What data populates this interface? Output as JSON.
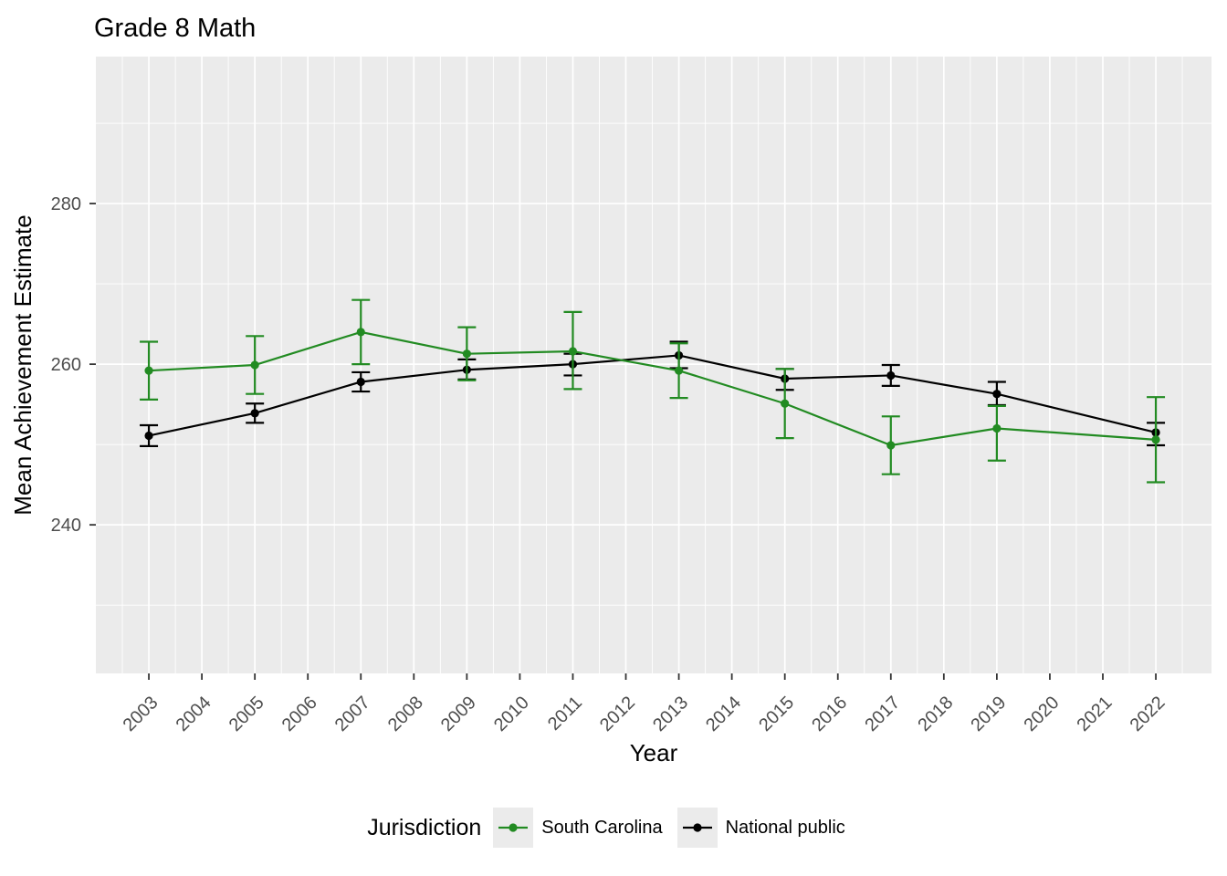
{
  "page": {
    "background": "#FFFFFF"
  },
  "chart_data": {
    "type": "line",
    "title": "Grade 8 Math",
    "xlabel": "Year",
    "ylabel": "Mean Achievement Estimate",
    "legend": {
      "title": "Jurisdiction",
      "position": "bottom",
      "entries": [
        {
          "label": "South Carolina",
          "color": "#228B22"
        },
        {
          "label": "National public",
          "color": "#000000"
        }
      ]
    },
    "x": [
      2003,
      2005,
      2007,
      2009,
      2011,
      2013,
      2015,
      2017,
      2019,
      2022
    ],
    "series": [
      {
        "name": "South Carolina",
        "color": "#228B22",
        "values": [
          259.2,
          259.9,
          264.0,
          261.3,
          261.6,
          259.2,
          255.1,
          249.9,
          252.0,
          250.6
        ],
        "err_low": [
          255.6,
          256.3,
          260.0,
          258.0,
          256.9,
          255.8,
          250.8,
          246.3,
          248.0,
          245.3
        ],
        "err_high": [
          262.8,
          263.5,
          268.0,
          264.6,
          266.5,
          262.6,
          259.4,
          253.5,
          254.8,
          255.9
        ]
      },
      {
        "name": "National public",
        "color": "#000000",
        "values": [
          251.1,
          253.9,
          257.8,
          259.3,
          260.0,
          261.1,
          258.2,
          258.6,
          256.3,
          251.5
        ],
        "err_low": [
          249.8,
          252.7,
          256.6,
          258.1,
          258.6,
          259.5,
          256.8,
          257.3,
          254.9,
          249.9
        ],
        "err_high": [
          252.4,
          255.1,
          259.0,
          260.6,
          261.3,
          262.8,
          259.4,
          259.9,
          257.8,
          252.7
        ]
      }
    ],
    "axes": {
      "x_ticks": [
        2003,
        2004,
        2005,
        2006,
        2007,
        2008,
        2009,
        2010,
        2011,
        2012,
        2013,
        2014,
        2015,
        2016,
        2017,
        2018,
        2019,
        2020,
        2021,
        2022
      ],
      "y_ticks": [
        240,
        260,
        280
      ],
      "xlim": [
        2002.0,
        2023.05
      ],
      "ylim": [
        221.5,
        298.3
      ],
      "grid": "major+minor",
      "x_tick_angle": 45
    },
    "style": {
      "panel_bg": "#EBEBEB",
      "grid_color": "#FFFFFF",
      "tick_label_color": "#4D4D4D",
      "tick_mark_color": "#333333",
      "point_marker": "circle",
      "error_bars": true
    }
  }
}
